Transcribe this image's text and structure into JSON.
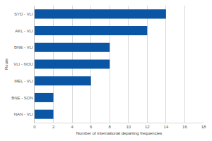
{
  "chart_data": {
    "type": "bar",
    "orientation": "horizontal",
    "categories": [
      "SYD - VLI",
      "AKL - VLI",
      "BNE - VLI",
      "VLI - NOU",
      "MEL - VLI",
      "BNE - SON",
      "NAN - VLI"
    ],
    "values": [
      14,
      12,
      8,
      8,
      6,
      2,
      2
    ],
    "color": "#0b56a4",
    "x_label": "Number of international departing frequencies",
    "y_label": "Route",
    "xlim": [
      0,
      18
    ],
    "xticks": [
      0,
      2,
      4,
      6,
      8,
      10,
      12,
      14,
      16,
      18
    ],
    "grid": true
  }
}
